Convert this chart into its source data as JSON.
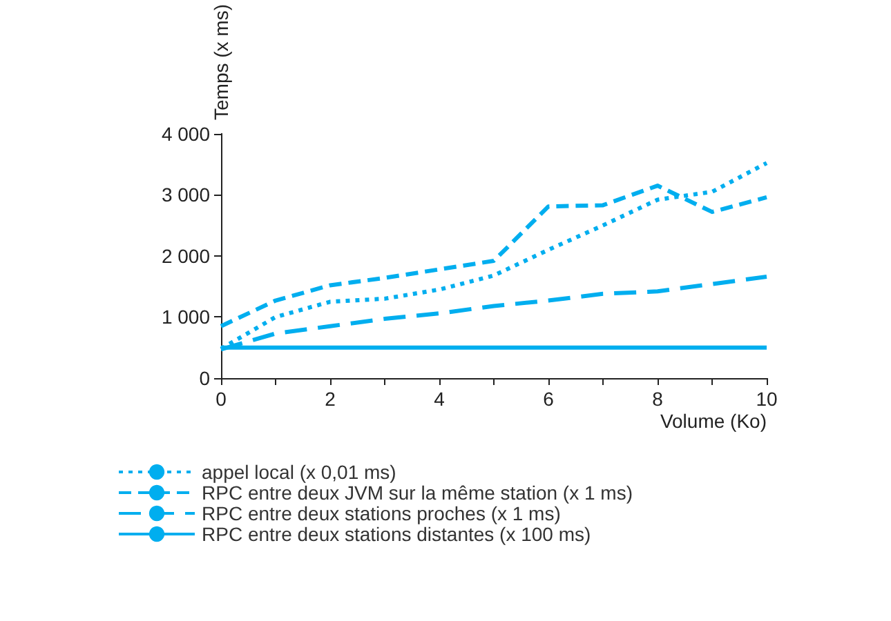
{
  "chart_data": {
    "type": "line",
    "xlabel": "Volume (Ko)",
    "ylabel": "Temps (x ms)",
    "x": [
      0,
      1,
      2,
      3,
      4,
      5,
      6,
      7,
      8,
      9,
      10
    ],
    "series": [
      {
        "name": "appel local (x 0,01 ms)",
        "color": "#00aeef",
        "line_style": "dotted",
        "values": [
          480,
          1000,
          1250,
          1300,
          1450,
          1680,
          2100,
          2500,
          2920,
          3050,
          3520
        ]
      },
      {
        "name": "RPC entre deux JVM sur la même station (x 1 ms)",
        "color": "#00aeef",
        "line_style": "dashed",
        "values": [
          850,
          1270,
          1520,
          1640,
          1780,
          1920,
          2810,
          2830,
          3150,
          2720,
          2960
        ]
      },
      {
        "name": "RPC entre deux stations proches (x 1 ms)",
        "color": "#00aeef",
        "line_style": "dashed",
        "values": [
          470,
          730,
          850,
          970,
          1060,
          1180,
          1270,
          1380,
          1420,
          1540,
          1660
        ]
      },
      {
        "name": "RPC entre deux stations distantes (x 100 ms)",
        "color": "#00aeef",
        "line_style": "solid",
        "values": [
          500,
          500,
          500,
          500,
          500,
          500,
          500,
          500,
          500,
          500,
          500
        ]
      }
    ],
    "xlim": [
      0,
      10
    ],
    "xticks": [
      0,
      {
        "value": 1,
        "label": null
      },
      2,
      {
        "value": 3,
        "label": null
      },
      4,
      {
        "value": 5,
        "label": null
      },
      6,
      {
        "value": 7,
        "label": null
      },
      8,
      {
        "value": 9,
        "label": null
      },
      10
    ],
    "ylim": [
      0,
      4000
    ],
    "yticks": [
      0,
      {
        "value": 1000,
        "label": "1 000"
      },
      {
        "value": 2000,
        "label": "2 000"
      },
      {
        "value": 3000,
        "label": "3 000"
      },
      {
        "value": 4000,
        "label": "4 000"
      }
    ],
    "grid": false,
    "legend": "bottom left",
    "marker": "none"
  }
}
